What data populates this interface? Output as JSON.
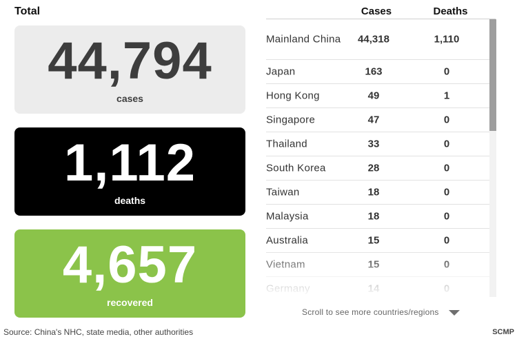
{
  "total_label": "Total",
  "cards": {
    "cases": {
      "value": "44,794",
      "label": "cases"
    },
    "deaths": {
      "value": "1,112",
      "label": "deaths"
    },
    "recovered": {
      "value": "4,657",
      "label": "recovered"
    }
  },
  "table": {
    "headers": {
      "cases": "Cases",
      "deaths": "Deaths"
    },
    "rows": [
      {
        "country": "Mainland China",
        "cases": "44,318",
        "deaths": "1,110"
      },
      {
        "country": "Japan",
        "cases": "163",
        "deaths": "0"
      },
      {
        "country": "Hong Kong",
        "cases": "49",
        "deaths": "1"
      },
      {
        "country": "Singapore",
        "cases": "47",
        "deaths": "0"
      },
      {
        "country": "Thailand",
        "cases": "33",
        "deaths": "0"
      },
      {
        "country": "South Korea",
        "cases": "28",
        "deaths": "0"
      },
      {
        "country": "Taiwan",
        "cases": "18",
        "deaths": "0"
      },
      {
        "country": "Malaysia",
        "cases": "18",
        "deaths": "0"
      },
      {
        "country": "Australia",
        "cases": "15",
        "deaths": "0"
      },
      {
        "country": "Vietnam",
        "cases": "15",
        "deaths": "0"
      },
      {
        "country": "Germany",
        "cases": "14",
        "deaths": "0"
      }
    ]
  },
  "scroll_hint": "Scroll to see more countries/regions",
  "scroll_icon": "chevron-down-icon",
  "source": "Source: China's NHC, state media, other authorities",
  "brand": "SCMP",
  "colors": {
    "cases_card": "#ececec",
    "deaths_card": "#000000",
    "recovered_card": "#8bc34a"
  }
}
